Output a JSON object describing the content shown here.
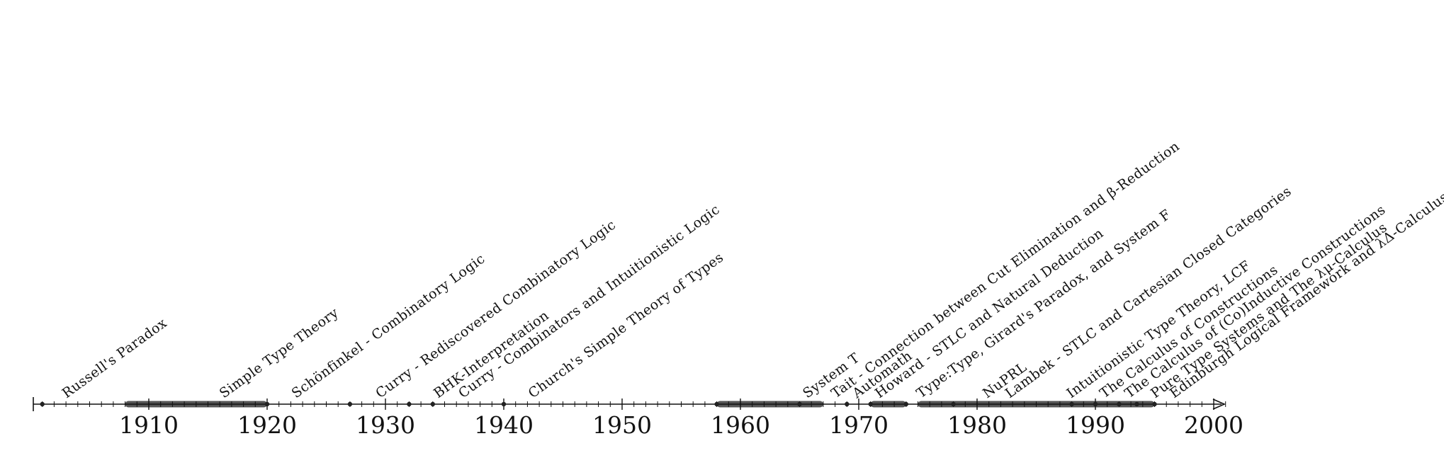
{
  "timeline": {
    "axis": {
      "start": 1901,
      "end": 2002,
      "major_ticks": [
        1910,
        1920,
        1930,
        1940,
        1950,
        1960,
        1970,
        1980,
        1990,
        2000
      ],
      "minor_tick_step": 1
    },
    "year_labels": [
      "1910",
      "1920",
      "1930",
      "1940",
      "1950",
      "1960",
      "1970",
      "1980",
      "1990",
      "2000"
    ],
    "events": [
      {
        "year": 1901.0,
        "label": "Russell's Paradox"
      },
      {
        "year": 1914.3,
        "label": "Simple Type Theory"
      },
      {
        "year": 1920.4,
        "label": "Schönfinkel - Combinatory Logic"
      },
      {
        "year": 1927.5,
        "label": "Curry - Rediscovered Combinatory Logic"
      },
      {
        "year": 1932.4,
        "label": "BHK-Interpretation"
      },
      {
        "year": 1934.5,
        "label": "Curry - Combinators and Intuitionistic Logic"
      },
      {
        "year": 1940.4,
        "label": "Church's Simple Theory of Types"
      },
      {
        "year": 1963.6,
        "label": "System T"
      },
      {
        "year": 1966.0,
        "label": "Tait - Connection between Cut Elimination and β-Reduction"
      },
      {
        "year": 1967.8,
        "label": "Automath"
      },
      {
        "year": 1969.7,
        "label": "Howard - STLC and Natural Deduction"
      },
      {
        "year": 1973.2,
        "label": "Type:Type, Girard's Paradox, and System F"
      },
      {
        "year": 1978.8,
        "label": "NuPRL"
      },
      {
        "year": 1980.7,
        "label": "Lambek - STLC and Cartesian Closed Categories"
      },
      {
        "year": 1985.9,
        "label": "Intuitionistic Type Theory, LCF"
      },
      {
        "year": 1988.7,
        "label": "The Calculus of Constructions"
      },
      {
        "year": 1990.8,
        "label": "The Calculus of (Co)Inductive Constructions"
      },
      {
        "year": 1993.0,
        "label": "Pure Type Systems and The λμ-Calculus"
      },
      {
        "year": 1994.6,
        "label": "Edinburgh Logical Framework and λΔ-Calculus"
      }
    ],
    "period_bars": [
      {
        "from": 1908.0,
        "to": 1920.0
      },
      {
        "from": 1958.0,
        "to": 1967.0
      },
      {
        "from": 1971.0,
        "to": 1974.0
      },
      {
        "from": 1975.0,
        "to": 1995.0
      }
    ],
    "dots": [
      1901.0,
      1920.0,
      1927.0,
      1932.0,
      1934.0,
      1940.0,
      1958.0,
      1965.0,
      1969.0,
      1971.0,
      1974.0,
      1978.0,
      1988.0,
      1990.0,
      1992.0,
      1993.5,
      1995.0
    ],
    "colors": {
      "axis": "#111111",
      "text": "#111111",
      "bar": "#555555",
      "dot": "#222222"
    }
  }
}
